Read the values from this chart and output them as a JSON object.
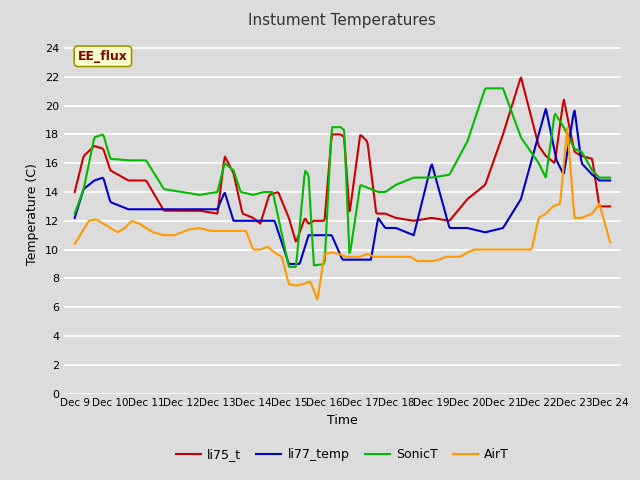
{
  "title": "Instument Temperatures",
  "xlabel": "Time",
  "ylabel": "Temperature (C)",
  "annotation": "EE_flux",
  "ylim": [
    0,
    25
  ],
  "yticks": [
    0,
    2,
    4,
    6,
    8,
    10,
    12,
    14,
    16,
    18,
    20,
    22,
    24
  ],
  "xtick_labels": [
    "Dec 9",
    "Dec 10",
    "Dec 11",
    "Dec 12",
    "Dec 13",
    "Dec 14",
    "Dec 15",
    "Dec 16",
    "Dec 17",
    "Dec 18",
    "Dec 19",
    "Dec 20",
    "Dec 21",
    "Dec 22",
    "Dec 23",
    "Dec 24"
  ],
  "bg_color": "#dcdcdc",
  "grid_color": "#ffffff",
  "series_colors": {
    "li75_t": "#cc0000",
    "li77_temp": "#0000cc",
    "SonicT": "#00bb00",
    "AirT": "#ff9900"
  },
  "linewidth": 1.5,
  "li75_x": [
    0,
    0.25,
    0.55,
    0.8,
    1.0,
    1.5,
    2.0,
    2.5,
    3.0,
    3.5,
    4.0,
    4.2,
    4.45,
    4.7,
    5.0,
    5.2,
    5.45,
    5.7,
    6.0,
    6.2,
    6.45,
    6.55,
    6.7,
    7.0,
    7.2,
    7.45,
    7.55,
    7.7,
    8.0,
    8.2,
    8.45,
    8.55,
    8.7,
    9.0,
    9.5,
    10.0,
    10.5,
    11.0,
    11.5,
    12.0,
    12.5,
    13.0,
    13.2,
    13.45,
    13.7,
    14.0,
    14.2,
    14.5,
    14.7,
    15.0
  ],
  "li75_y": [
    14.0,
    16.5,
    17.2,
    17.0,
    15.5,
    14.8,
    14.8,
    12.7,
    12.7,
    12.7,
    12.5,
    16.5,
    15.3,
    12.5,
    12.2,
    11.8,
    13.8,
    14.0,
    12.2,
    10.5,
    12.2,
    11.8,
    12.0,
    12.0,
    18.0,
    18.0,
    17.8,
    12.5,
    18.0,
    17.5,
    12.5,
    12.5,
    12.5,
    12.2,
    12.0,
    12.2,
    12.0,
    13.5,
    14.5,
    18.0,
    22.0,
    17.2,
    16.5,
    16.0,
    20.5,
    16.8,
    16.5,
    16.3,
    13.0,
    13.0
  ],
  "li77_x": [
    0,
    0.25,
    0.55,
    0.8,
    1.0,
    1.5,
    2.0,
    2.5,
    3.0,
    3.5,
    4.0,
    4.2,
    4.45,
    4.65,
    5.0,
    5.3,
    5.6,
    6.0,
    6.3,
    6.55,
    6.7,
    7.0,
    7.2,
    7.5,
    7.7,
    8.0,
    8.3,
    8.5,
    8.7,
    9.0,
    9.5,
    10.0,
    10.5,
    11.0,
    11.5,
    12.0,
    12.5,
    13.0,
    13.2,
    13.5,
    13.7,
    14.0,
    14.2,
    14.5,
    14.7,
    15.0
  ],
  "li77_y": [
    12.2,
    14.2,
    14.8,
    15.0,
    13.3,
    12.8,
    12.8,
    12.8,
    12.8,
    12.8,
    12.8,
    14.0,
    12.0,
    12.0,
    12.0,
    12.0,
    12.0,
    9.0,
    9.0,
    11.0,
    11.0,
    11.0,
    11.0,
    9.3,
    9.3,
    9.3,
    9.3,
    12.2,
    11.5,
    11.5,
    11.0,
    16.0,
    11.5,
    11.5,
    11.2,
    11.5,
    13.5,
    18.0,
    19.8,
    16.2,
    15.2,
    19.8,
    16.0,
    15.2,
    14.8,
    14.8
  ],
  "sonic_x": [
    0,
    0.25,
    0.55,
    0.8,
    1.0,
    1.5,
    2.0,
    2.5,
    3.0,
    3.5,
    4.0,
    4.2,
    4.45,
    4.65,
    5.0,
    5.3,
    5.55,
    6.0,
    6.2,
    6.45,
    6.55,
    6.7,
    7.0,
    7.2,
    7.45,
    7.55,
    7.7,
    8.0,
    8.3,
    8.5,
    8.7,
    9.0,
    9.5,
    10.0,
    10.5,
    11.0,
    11.5,
    12.0,
    12.5,
    13.0,
    13.2,
    13.45,
    13.7,
    14.0,
    14.2,
    14.5,
    14.7,
    15.0
  ],
  "sonic_y": [
    12.5,
    14.2,
    17.8,
    18.0,
    16.3,
    16.2,
    16.2,
    14.2,
    14.0,
    13.8,
    14.0,
    16.0,
    15.5,
    14.0,
    13.8,
    14.0,
    14.0,
    8.8,
    8.8,
    15.5,
    15.2,
    8.9,
    9.0,
    18.5,
    18.5,
    18.3,
    9.5,
    14.5,
    14.2,
    14.0,
    14.0,
    14.5,
    15.0,
    15.0,
    15.2,
    17.5,
    21.2,
    21.2,
    17.8,
    16.0,
    15.0,
    19.5,
    18.5,
    17.0,
    16.8,
    15.5,
    15.0,
    15.0
  ],
  "air_x": [
    0,
    0.2,
    0.4,
    0.6,
    0.8,
    1.0,
    1.2,
    1.4,
    1.6,
    1.8,
    2.0,
    2.2,
    2.5,
    2.8,
    3.0,
    3.2,
    3.5,
    3.8,
    4.0,
    4.2,
    4.4,
    4.6,
    4.8,
    5.0,
    5.2,
    5.4,
    5.6,
    5.8,
    6.0,
    6.2,
    6.4,
    6.6,
    6.8,
    7.0,
    7.2,
    7.4,
    7.6,
    7.8,
    8.0,
    8.2,
    8.4,
    8.6,
    8.8,
    9.0,
    9.2,
    9.4,
    9.6,
    9.8,
    10.0,
    10.2,
    10.4,
    10.6,
    10.8,
    11.0,
    11.2,
    11.5,
    11.8,
    12.0,
    12.2,
    12.5,
    12.8,
    13.0,
    13.2,
    13.4,
    13.6,
    13.8,
    14.0,
    14.2,
    14.5,
    14.7,
    15.0
  ],
  "air_y": [
    10.4,
    11.2,
    12.0,
    12.1,
    11.8,
    11.5,
    11.2,
    11.5,
    12.0,
    11.8,
    11.5,
    11.2,
    11.0,
    11.0,
    11.2,
    11.4,
    11.5,
    11.3,
    11.3,
    11.3,
    11.3,
    11.3,
    11.3,
    10.0,
    10.0,
    10.2,
    9.8,
    9.5,
    7.6,
    7.5,
    7.6,
    7.8,
    6.5,
    9.7,
    9.8,
    9.7,
    9.5,
    9.5,
    9.5,
    9.7,
    9.5,
    9.5,
    9.5,
    9.5,
    9.5,
    9.5,
    9.2,
    9.2,
    9.2,
    9.3,
    9.5,
    9.5,
    9.5,
    9.8,
    10.0,
    10.0,
    10.0,
    10.0,
    10.0,
    10.0,
    10.0,
    12.2,
    12.5,
    13.0,
    13.2,
    18.5,
    12.2,
    12.2,
    12.5,
    13.2,
    10.5
  ]
}
